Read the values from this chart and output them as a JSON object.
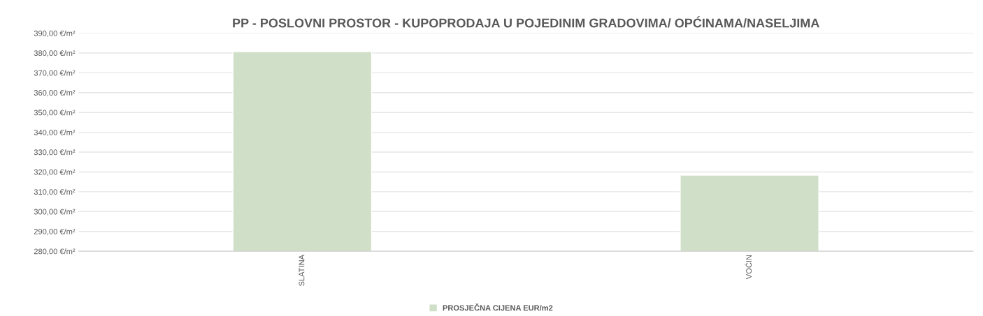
{
  "chart_data": {
    "type": "bar",
    "title": "PP - POSLOVNI PROSTOR - KUPOPRODAJA U POJEDINIM GRADOVIMA/ OPĆINAMA/NASELJIMA",
    "categories": [
      "SLATINA",
      "VOĆIN"
    ],
    "series": [
      {
        "name": "PROSJEČNA CIJENA EUR/m2",
        "color": "#d0dfc7",
        "values": [
          380.7,
          318.4
        ]
      }
    ],
    "ylim": [
      280,
      390
    ],
    "yticks": [
      {
        "value": 280,
        "label": "280,00 €/m²"
      },
      {
        "value": 290,
        "label": "290,00 €/m²"
      },
      {
        "value": 300,
        "label": "300,00 €/m²"
      },
      {
        "value": 310,
        "label": "310,00 €/m²"
      },
      {
        "value": 320,
        "label": "320,00 €/m²"
      },
      {
        "value": 330,
        "label": "330,00 €/m²"
      },
      {
        "value": 340,
        "label": "340,00 €/m²"
      },
      {
        "value": 350,
        "label": "350,00 €/m²"
      },
      {
        "value": 360,
        "label": "360,00 €/m²"
      },
      {
        "value": 370,
        "label": "370,00 €/m²"
      },
      {
        "value": 380,
        "label": "380,00 €/m²"
      },
      {
        "value": 390,
        "label": "390,00 €/m²"
      }
    ],
    "grid": "y",
    "legend": "bottom"
  }
}
